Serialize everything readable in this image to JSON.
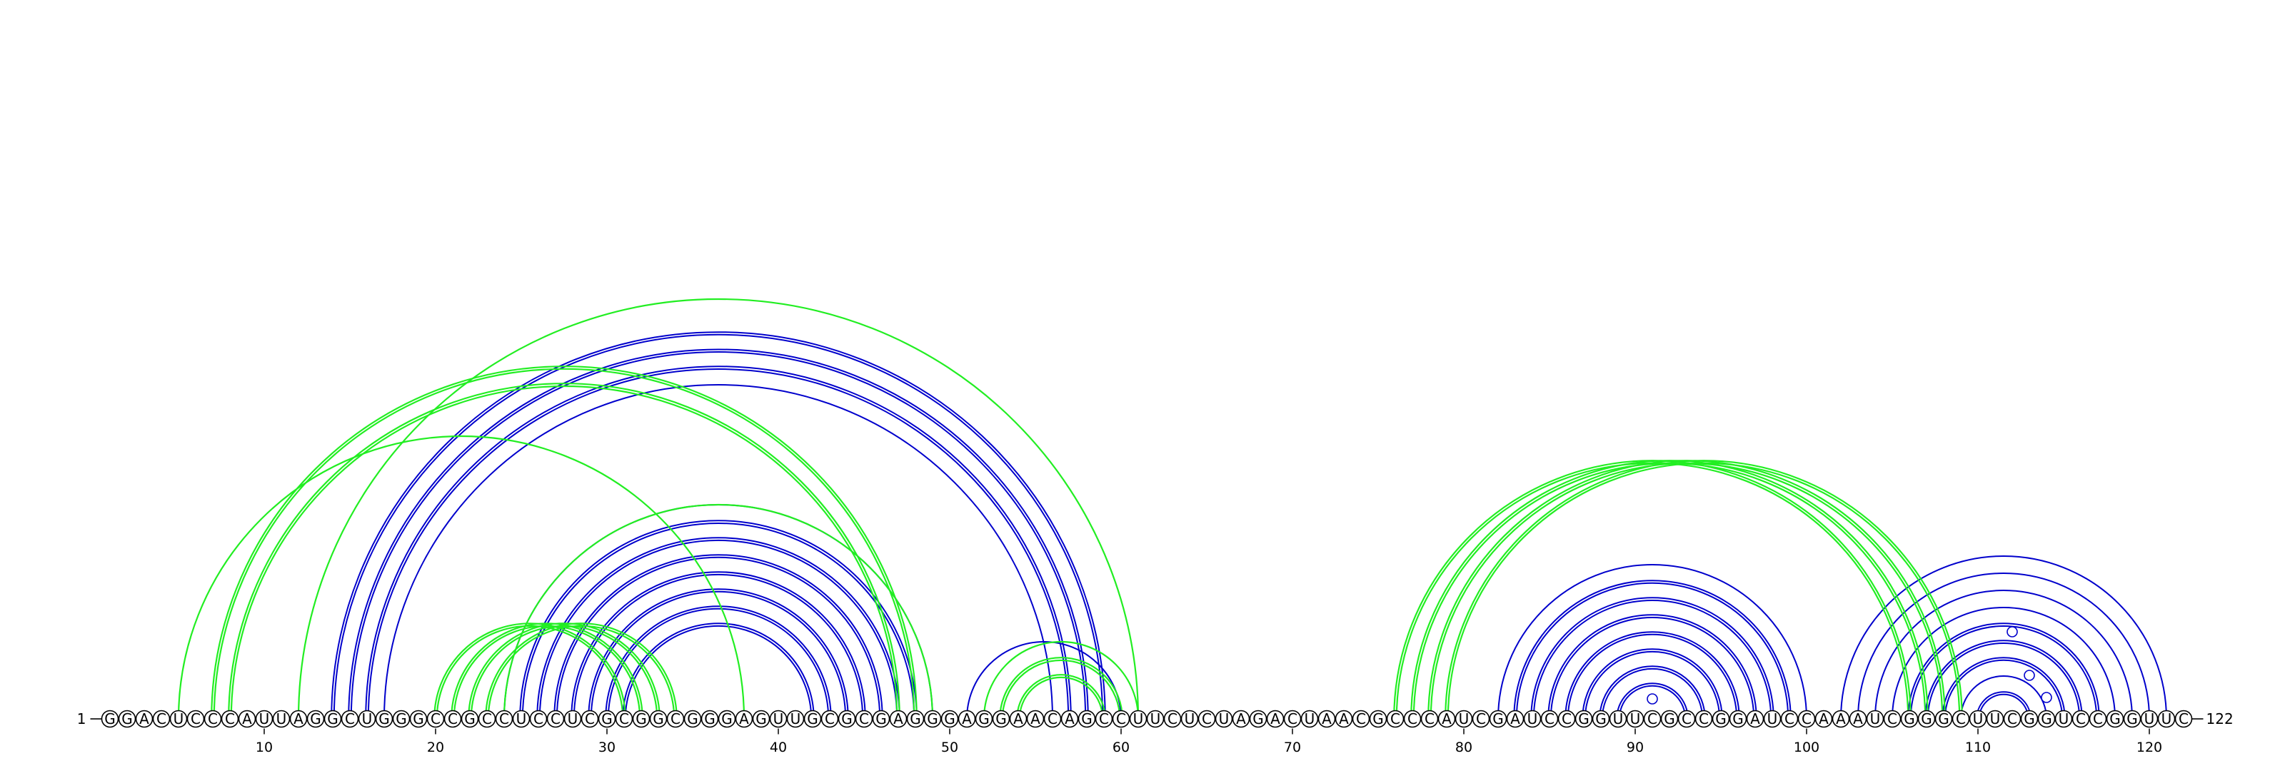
{
  "sequence": "GGACUCCCAUUAGGCUGGGCCGCCUCCUCGCGGCGGGAGUUGCGCGAGGGAGGAACAGCCUUCUCUAGACUAACGCCCAUCGAUCCGGUUCGCCGGAUCCAAAUCGGGCUUCGGUCCGGUUC",
  "start_label": "1",
  "end_label": "122",
  "tick_positions": [
    10,
    20,
    30,
    40,
    50,
    60,
    70,
    80,
    90,
    100,
    110,
    120
  ],
  "colors": {
    "blue": "#0000cc",
    "green": "#22ee22"
  },
  "arc_groups": [
    {
      "color": "blue",
      "double": true,
      "pairs": [
        [
          14,
          59
        ],
        [
          15,
          58
        ],
        [
          16,
          57
        ]
      ]
    },
    {
      "color": "blue",
      "double": false,
      "pairs": [
        [
          17,
          56
        ]
      ]
    },
    {
      "color": "blue",
      "double": true,
      "pairs": [
        [
          25,
          48
        ],
        [
          26,
          47
        ],
        [
          27,
          46
        ],
        [
          28,
          45
        ],
        [
          29,
          44
        ],
        [
          30,
          43
        ],
        [
          31,
          42
        ]
      ]
    },
    {
      "color": "blue",
      "double": false,
      "pairs": [
        [
          24,
          49
        ],
        [
          51,
          60
        ]
      ]
    },
    {
      "color": "blue",
      "double": true,
      "pairs": [
        [
          83,
          99
        ],
        [
          84,
          98
        ],
        [
          85,
          97
        ],
        [
          86,
          96
        ],
        [
          87,
          95
        ],
        [
          88,
          94
        ],
        [
          89,
          93
        ]
      ]
    },
    {
      "color": "blue",
      "double": false,
      "pairs": [
        [
          82,
          100
        ]
      ]
    },
    {
      "color": "blue",
      "double": true,
      "pairs": [
        [
          106,
          117
        ],
        [
          107,
          116
        ],
        [
          108,
          115
        ],
        [
          110,
          113
        ]
      ]
    },
    {
      "color": "blue",
      "double": false,
      "pairs": [
        [
          102,
          121
        ],
        [
          103,
          120
        ],
        [
          104,
          119
        ],
        [
          105,
          118
        ],
        [
          109,
          114
        ]
      ]
    },
    {
      "color": "green",
      "double": true,
      "pairs": [
        [
          7,
          48
        ],
        [
          8,
          47
        ],
        [
          20,
          31
        ],
        [
          21,
          32
        ],
        [
          22,
          33
        ],
        [
          23,
          34
        ],
        [
          53,
          60
        ],
        [
          54,
          59
        ],
        [
          76,
          106
        ],
        [
          77,
          107
        ],
        [
          78,
          108
        ],
        [
          79,
          109
        ]
      ]
    },
    {
      "color": "green",
      "double": false,
      "pairs": [
        [
          5,
          38
        ],
        [
          12,
          61
        ],
        [
          24,
          49
        ],
        [
          52,
          61
        ]
      ]
    }
  ],
  "hairpin_markers": [
    91,
    112,
    113,
    114
  ]
}
